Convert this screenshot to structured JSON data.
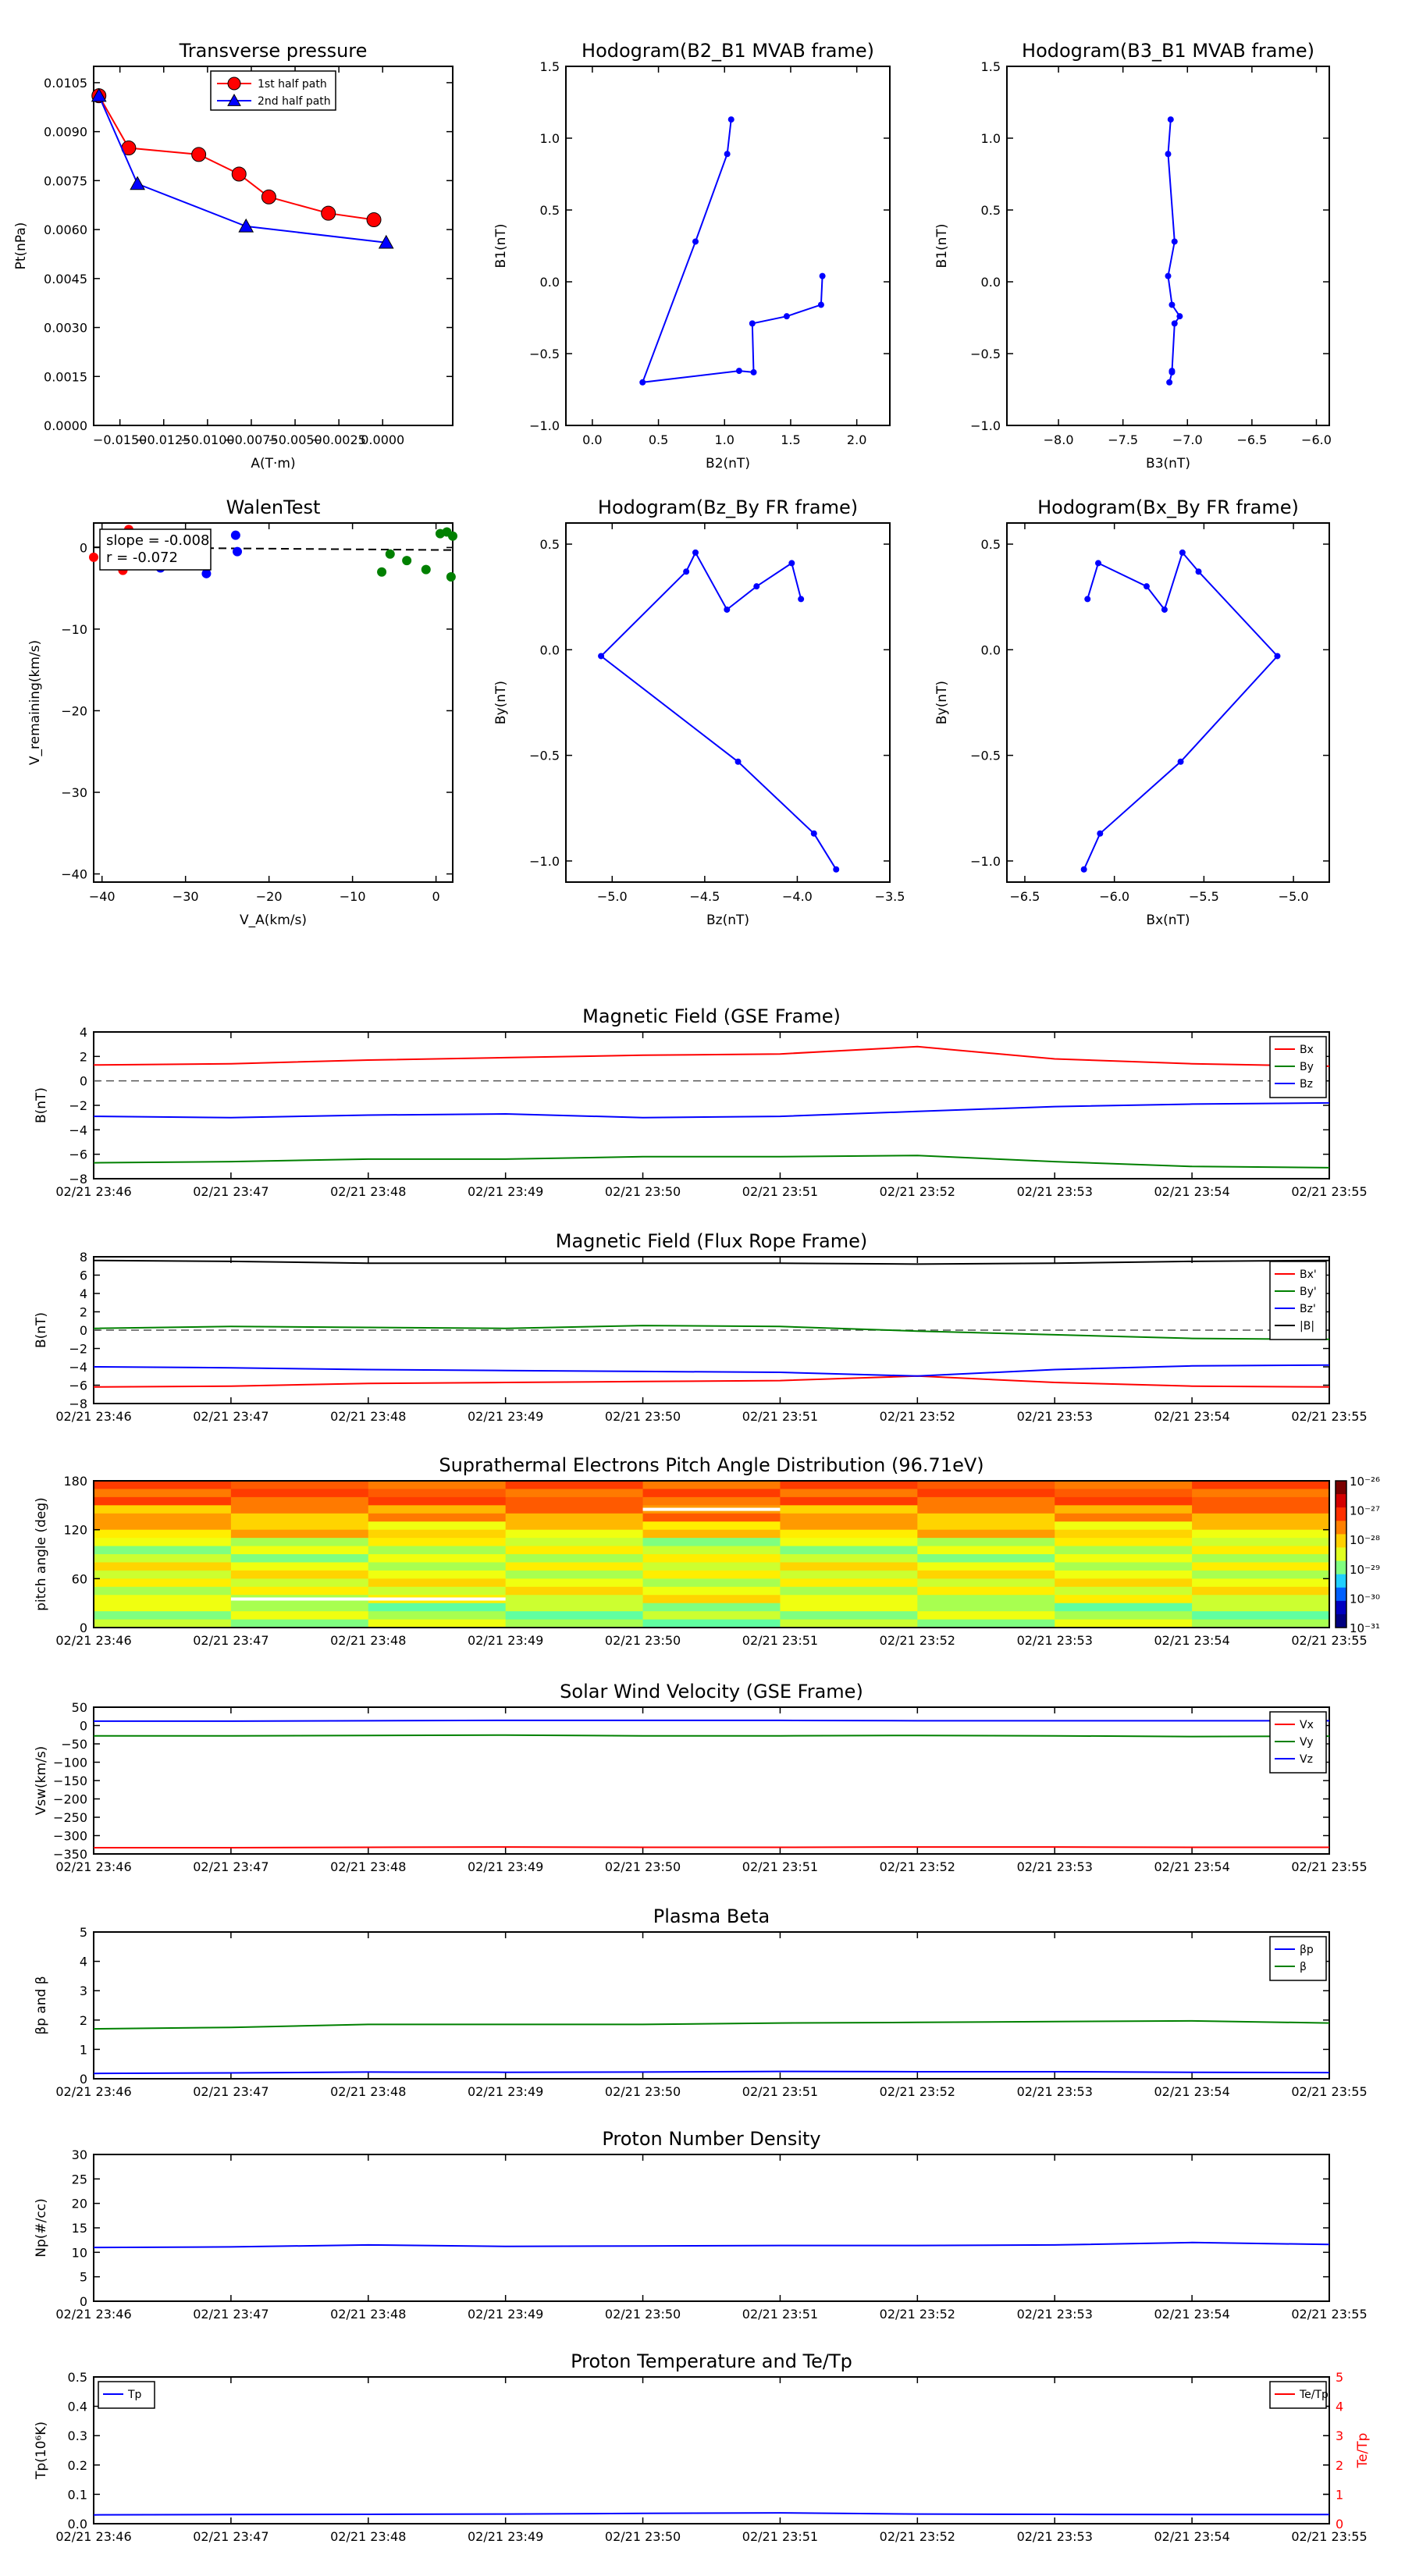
{
  "figure": {
    "time_ticks": [
      "02/21 23:46",
      "02/21 23:47",
      "02/21 23:48",
      "02/21 23:49",
      "02/21 23:50",
      "02/21 23:51",
      "02/21 23:52",
      "02/21 23:53",
      "02/21 23:54",
      "02/21 23:55"
    ]
  },
  "chart_data": [
    {
      "id": "tp",
      "type": "line",
      "title": "Transverse pressure",
      "xlabel": "A(T·m)",
      "ylabel": "Pt(nPa)",
      "xlim": [
        -0.0165,
        0.004
      ],
      "ylim": [
        0,
        0.011
      ],
      "xticks": [
        -0.015,
        -0.0125,
        -0.01,
        -0.0075,
        -0.005,
        -0.0025,
        0.0
      ],
      "xtick_labels": [
        "−0.0150",
        "−0.0125",
        "−0.0100",
        "−0.0075",
        "−0.0050",
        "−0.0025",
        "0.0000"
      ],
      "yticks": [
        0,
        0.0015,
        0.003,
        0.0045,
        0.006,
        0.0075,
        0.009,
        0.0105
      ],
      "ytick_labels": [
        "0.0000",
        "0.0015",
        "0.0030",
        "0.0045",
        "0.0060",
        "0.0075",
        "0.0090",
        "0.0105"
      ],
      "legend": {
        "placement": "upper-center",
        "entries": [
          "1st half path",
          "2nd half path"
        ]
      },
      "series": [
        {
          "name": "1st half path",
          "color": "#ff0000",
          "marker": "circle",
          "x": [
            -0.0162,
            -0.0145,
            -0.0105,
            -0.0082,
            -0.0065,
            -0.0031,
            -0.0005
          ],
          "y": [
            0.0101,
            0.0085,
            0.0083,
            0.0077,
            0.007,
            0.0065,
            0.0063
          ]
        },
        {
          "name": "2nd half path",
          "color": "#0000ff",
          "marker": "triangle",
          "x": [
            -0.0162,
            -0.014,
            -0.0078,
            0.0002
          ],
          "y": [
            0.0101,
            0.0074,
            0.0061,
            0.0056
          ]
        }
      ]
    },
    {
      "id": "h1",
      "type": "line",
      "title": "Hodogram(B2_B1 MVAB frame)",
      "xlabel": "B2(nT)",
      "ylabel": "B1(nT)",
      "xlim": [
        -0.2,
        2.25
      ],
      "ylim": [
        -1.0,
        1.5
      ],
      "xticks": [
        0,
        0.5,
        1,
        1.5,
        2
      ],
      "xtick_labels": [
        "0.0",
        "0.5",
        "1.0",
        "1.5",
        "2.0"
      ],
      "yticks": [
        -1,
        -0.5,
        0,
        0.5,
        1,
        1.5
      ],
      "ytick_labels": [
        "−1.0",
        "−0.5",
        "0.0",
        "0.5",
        "1.0",
        "1.5"
      ],
      "series": [
        {
          "color": "#0000ff",
          "x": [
            1.05,
            1.02,
            0.78,
            0.38,
            1.11,
            1.22,
            1.21,
            1.47,
            1.73,
            1.74
          ],
          "y": [
            1.13,
            0.89,
            0.28,
            -0.7,
            -0.62,
            -0.63,
            -0.29,
            -0.24,
            -0.16,
            0.04
          ]
        }
      ]
    },
    {
      "id": "h2",
      "type": "line",
      "title": "Hodogram(B3_B1 MVAB frame)",
      "xlabel": "B3(nT)",
      "ylabel": "B1(nT)",
      "xlim": [
        -8.4,
        -5.9
      ],
      "ylim": [
        -1.0,
        1.5
      ],
      "xticks": [
        -8,
        -7.5,
        -7,
        -6.5,
        -6
      ],
      "xtick_labels": [
        "−8.0",
        "−7.5",
        "−7.0",
        "−6.5",
        "−6.0"
      ],
      "yticks": [
        -1,
        -0.5,
        0,
        0.5,
        1,
        1.5
      ],
      "ytick_labels": [
        "−1.0",
        "−0.5",
        "0.0",
        "0.5",
        "1.0",
        "1.5"
      ],
      "series": [
        {
          "color": "#0000ff",
          "x": [
            -7.13,
            -7.15,
            -7.1,
            -7.15,
            -7.12,
            -7.06,
            -7.1,
            -7.12,
            -7.12,
            -7.14
          ],
          "y": [
            1.13,
            0.89,
            0.28,
            0.04,
            -0.16,
            -0.24,
            -0.29,
            -0.62,
            -0.63,
            -0.7
          ]
        }
      ]
    },
    {
      "id": "walen",
      "type": "scatter",
      "title": "WalenTest",
      "xlabel": "V_A(km/s)",
      "ylabel": "V_remaining(km/s)",
      "xlim": [
        -41,
        2
      ],
      "ylim": [
        -41,
        3
      ],
      "xticks": [
        -40,
        -30,
        -20,
        -10,
        0
      ],
      "xtick_labels": [
        "−40",
        "−30",
        "−20",
        "−10",
        "0"
      ],
      "yticks": [
        -40,
        -30,
        -20,
        -10,
        0
      ],
      "ytick_labels": [
        "−40",
        "−30",
        "−20",
        "−10",
        "0"
      ],
      "annotation": [
        "slope = -0.008",
        "r = -0.072"
      ],
      "fit_line": {
        "slope": -0.008,
        "intercept": -0.3
      },
      "series": [
        {
          "color": "#ff0000",
          "x": [
            -41,
            -37.5,
            -36.8
          ],
          "y": [
            -1.2,
            -2.8,
            2.2
          ]
        },
        {
          "color": "#0000ff",
          "x": [
            -33,
            -27.5,
            -24,
            -23.8
          ],
          "y": [
            -2.5,
            -3.2,
            1.5,
            -0.5
          ]
        },
        {
          "color": "#008000",
          "x": [
            -6.5,
            -5.5,
            -3.5,
            -1.2,
            0.5,
            1.3,
            2.0,
            1.8,
            2.2
          ],
          "y": [
            -3.0,
            -0.8,
            -1.6,
            -2.7,
            1.7,
            1.9,
            1.4,
            -3.6,
            -0.6
          ]
        }
      ]
    },
    {
      "id": "h3",
      "type": "line",
      "title": "Hodogram(Bz_By FR frame)",
      "xlabel": "Bz(nT)",
      "ylabel": "By(nT)",
      "xlim": [
        -5.25,
        -3.5
      ],
      "ylim": [
        -1.1,
        0.6
      ],
      "xticks": [
        -5,
        -4.5,
        -4,
        -3.5
      ],
      "xtick_labels": [
        "−5.0",
        "−4.5",
        "−4.0",
        "−3.5"
      ],
      "yticks": [
        -1,
        -0.5,
        0,
        0.5
      ],
      "ytick_labels": [
        "−1.0",
        "−0.5",
        "0.0",
        "0.5"
      ],
      "series": [
        {
          "color": "#0000ff",
          "x": [
            -3.98,
            -4.03,
            -4.22,
            -4.38,
            -4.55,
            -4.6,
            -5.06,
            -4.32,
            -3.91,
            -3.79
          ],
          "y": [
            0.24,
            0.41,
            0.3,
            0.19,
            0.46,
            0.37,
            -0.03,
            -0.53,
            -0.87,
            -1.04
          ]
        }
      ]
    },
    {
      "id": "h4",
      "type": "line",
      "title": "Hodogram(Bx_By FR frame)",
      "xlabel": "Bx(nT)",
      "ylabel": "By(nT)",
      "xlim": [
        -6.6,
        -4.8
      ],
      "ylim": [
        -1.1,
        0.6
      ],
      "xticks": [
        -6.5,
        -6,
        -5.5,
        -5
      ],
      "xtick_labels": [
        "−6.5",
        "−6.0",
        "−5.5",
        "−5.0"
      ],
      "yticks": [
        -1,
        -0.5,
        0,
        0.5
      ],
      "ytick_labels": [
        "−1.0",
        "−0.5",
        "0.0",
        "0.5"
      ],
      "series": [
        {
          "color": "#0000ff",
          "x": [
            -6.15,
            -6.09,
            -5.82,
            -5.72,
            -5.62,
            -5.53,
            -5.09,
            -5.63,
            -6.08,
            -6.17
          ],
          "y": [
            0.24,
            0.41,
            0.3,
            0.19,
            0.46,
            0.37,
            -0.03,
            -0.53,
            -0.87,
            -1.04
          ]
        }
      ]
    },
    {
      "id": "bgse",
      "type": "line",
      "title": "Magnetic Field (GSE Frame)",
      "ylabel": "B(nT)",
      "ylim": [
        -8,
        4
      ],
      "yticks": [
        -8,
        -6,
        -4,
        -2,
        0,
        2,
        4
      ],
      "ytick_labels": [
        "−8",
        "−6",
        "−4",
        "−2",
        "0",
        "2",
        "4"
      ],
      "zero_line": true,
      "legend": {
        "placement": "top-right",
        "entries": [
          "Bx",
          "By",
          "Bz"
        ]
      },
      "x": [
        0,
        1,
        2,
        3,
        4,
        5,
        6,
        7,
        8,
        9
      ],
      "series": [
        {
          "name": "Bx",
          "color": "#ff0000",
          "values": [
            1.3,
            1.4,
            1.7,
            1.9,
            2.1,
            2.2,
            2.8,
            1.8,
            1.4,
            1.2
          ]
        },
        {
          "name": "By",
          "color": "#008000",
          "values": [
            -6.7,
            -6.6,
            -6.4,
            -6.4,
            -6.2,
            -6.2,
            -6.1,
            -6.6,
            -7.0,
            -7.1
          ]
        },
        {
          "name": "Bz",
          "color": "#0000ff",
          "values": [
            -2.9,
            -3.0,
            -2.8,
            -2.7,
            -3.0,
            -2.9,
            -2.5,
            -2.1,
            -1.9,
            -1.8
          ]
        }
      ]
    },
    {
      "id": "bfr",
      "type": "line",
      "title": "Magnetic Field (Flux Rope Frame)",
      "ylabel": "B(nT)",
      "ylim": [
        -8,
        8
      ],
      "yticks": [
        -8,
        -6,
        -4,
        -2,
        0,
        2,
        4,
        6,
        8
      ],
      "ytick_labels": [
        "−8",
        "−6",
        "−4",
        "−2",
        "0",
        "2",
        "4",
        "6",
        "8"
      ],
      "zero_line": true,
      "legend": {
        "placement": "top-right",
        "entries": [
          "Bx'",
          "By'",
          "Bz'",
          "|B|"
        ]
      },
      "x": [
        0,
        1,
        2,
        3,
        4,
        5,
        6,
        7,
        8,
        9
      ],
      "series": [
        {
          "name": "Bx'",
          "color": "#ff0000",
          "values": [
            -6.2,
            -6.1,
            -5.8,
            -5.7,
            -5.6,
            -5.5,
            -5.0,
            -5.7,
            -6.1,
            -6.2
          ]
        },
        {
          "name": "By'",
          "color": "#008000",
          "values": [
            0.2,
            0.4,
            0.3,
            0.2,
            0.5,
            0.4,
            -0.1,
            -0.5,
            -0.9,
            -1.0
          ]
        },
        {
          "name": "Bz'",
          "color": "#0000ff",
          "values": [
            -4.0,
            -4.1,
            -4.3,
            -4.4,
            -4.5,
            -4.6,
            -5.0,
            -4.3,
            -3.9,
            -3.8
          ]
        },
        {
          "name": "|B|",
          "color": "#000000",
          "values": [
            7.6,
            7.5,
            7.3,
            7.3,
            7.3,
            7.3,
            7.2,
            7.3,
            7.5,
            7.6
          ]
        }
      ]
    },
    {
      "id": "pad",
      "type": "heatmap",
      "title": "Suprathermal Electrons Pitch Angle Distribution (96.71eV)",
      "ylabel": "pitch angle (deg)",
      "ylim": [
        0,
        180
      ],
      "yticks": [
        0,
        60,
        120,
        180
      ],
      "ytick_labels": [
        "0",
        "60",
        "120",
        "180"
      ],
      "colorbar": {
        "labels": [
          "10⁻²⁶",
          "10⁻²⁷",
          "10⁻²⁸",
          "10⁻²⁹",
          "10⁻³⁰",
          "10⁻³¹"
        ]
      },
      "ncols": 9,
      "nrows": 18
    },
    {
      "id": "vsw",
      "type": "line",
      "title": "Solar Wind Velocity (GSE Frame)",
      "ylabel": "Vsw(km/s)",
      "ylim": [
        -350,
        50
      ],
      "yticks": [
        -350,
        -300,
        -250,
        -200,
        -150,
        -100,
        -50,
        0,
        50
      ],
      "ytick_labels": [
        "−350",
        "−300",
        "−250",
        "−200",
        "−150",
        "−100",
        "−50",
        "0",
        "50"
      ],
      "legend": {
        "placement": "top-right",
        "entries": [
          "Vx",
          "Vy",
          "Vz"
        ]
      },
      "x": [
        0,
        1,
        2,
        3,
        4,
        5,
        6,
        7,
        8,
        9
      ],
      "series": [
        {
          "name": "Vx",
          "color": "#ff0000",
          "values": [
            -333,
            -333,
            -332,
            -331,
            -332,
            -332,
            -331,
            -331,
            -332,
            -332
          ]
        },
        {
          "name": "Vy",
          "color": "#008000",
          "values": [
            -28,
            -28,
            -27,
            -26,
            -28,
            -28,
            -27,
            -28,
            -30,
            -29
          ]
        },
        {
          "name": "Vz",
          "color": "#0000ff",
          "values": [
            12,
            12,
            13,
            14,
            14,
            14,
            13,
            13,
            13,
            13
          ]
        }
      ]
    },
    {
      "id": "beta",
      "type": "line",
      "title": "Plasma Beta",
      "ylabel": "βp and β",
      "ylim": [
        0,
        5
      ],
      "yticks": [
        0,
        1,
        2,
        3,
        4,
        5
      ],
      "ytick_labels": [
        "0",
        "1",
        "2",
        "3",
        "4",
        "5"
      ],
      "legend": {
        "placement": "top-right",
        "entries": [
          "βp",
          "β"
        ]
      },
      "x": [
        0,
        1,
        2,
        3,
        4,
        5,
        6,
        7,
        8,
        9
      ],
      "series": [
        {
          "name": "βp",
          "color": "#0000ff",
          "values": [
            0.18,
            0.2,
            0.23,
            0.22,
            0.23,
            0.25,
            0.24,
            0.24,
            0.22,
            0.21
          ]
        },
        {
          "name": "β",
          "color": "#008000",
          "values": [
            1.7,
            1.75,
            1.85,
            1.85,
            1.85,
            1.9,
            1.92,
            1.95,
            1.97,
            1.9
          ]
        }
      ]
    },
    {
      "id": "np",
      "type": "line",
      "title": "Proton Number Density",
      "ylabel": "Np(#/cc)",
      "ylim": [
        0,
        30
      ],
      "yticks": [
        0,
        5,
        10,
        15,
        20,
        25,
        30
      ],
      "ytick_labels": [
        "0",
        "5",
        "10",
        "15",
        "20",
        "25",
        "30"
      ],
      "x": [
        0,
        1,
        2,
        3,
        4,
        5,
        6,
        7,
        8,
        9
      ],
      "series": [
        {
          "color": "#0000ff",
          "values": [
            11.0,
            11.1,
            11.5,
            11.2,
            11.3,
            11.4,
            11.4,
            11.5,
            12.0,
            11.6
          ]
        }
      ]
    },
    {
      "id": "tp2",
      "type": "line",
      "title": "Proton Temperature and Te/Tp",
      "ylabel": "Tp(10⁶K)",
      "y2label": "Te/Tp",
      "ylim": [
        0,
        0.5
      ],
      "yticks": [
        0,
        0.1,
        0.2,
        0.3,
        0.4,
        0.5
      ],
      "ytick_labels": [
        "0.0",
        "0.1",
        "0.2",
        "0.3",
        "0.4",
        "0.5"
      ],
      "y2lim": [
        0,
        5
      ],
      "y2ticks": [
        0,
        1,
        2,
        3,
        4,
        5
      ],
      "y2tick_labels": [
        "0",
        "1",
        "2",
        "3",
        "4",
        "5"
      ],
      "legend_left": {
        "placement": "top-left",
        "entries": [
          "Tp"
        ]
      },
      "legend_right": {
        "placement": "top-right",
        "entries": [
          "Te/Tp"
        ]
      },
      "x": [
        0,
        1,
        2,
        3,
        4,
        5,
        6,
        7,
        8,
        9
      ],
      "series": [
        {
          "name": "Tp",
          "color": "#0000ff",
          "values": [
            0.03,
            0.031,
            0.032,
            0.033,
            0.035,
            0.037,
            0.033,
            0.032,
            0.031,
            0.031
          ]
        }
      ]
    }
  ]
}
